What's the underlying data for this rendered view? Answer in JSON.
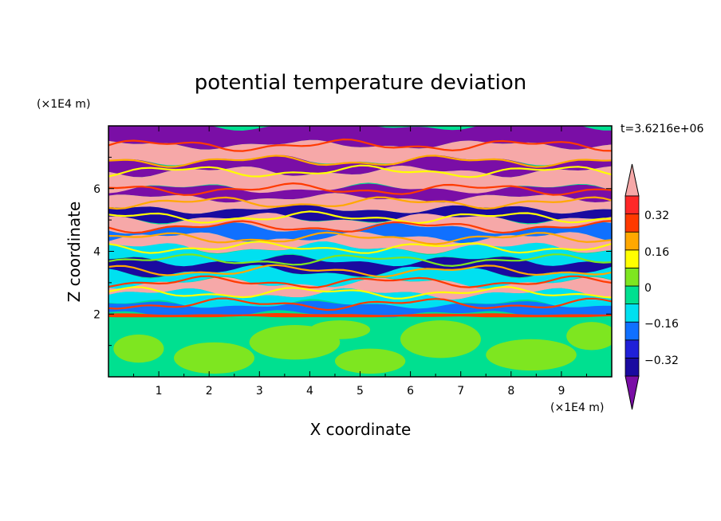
{
  "chart_data": {
    "type": "heatmap",
    "title": "potential temperature deviation",
    "xlabel": "X coordinate",
    "ylabel": "Z coordinate",
    "x_unit": "(×1E4 m)",
    "y_unit": "(×1E4 m)",
    "time_label": "t=3.6216e+06",
    "xlim": [
      0,
      10
    ],
    "ylim": [
      0,
      8
    ],
    "x_ticks": [
      "1",
      "2",
      "3",
      "4",
      "5",
      "6",
      "7",
      "8",
      "9"
    ],
    "y_ticks": [
      "2",
      "4",
      "6"
    ],
    "colorbar": {
      "levels": [
        -0.4,
        -0.32,
        -0.24,
        -0.16,
        -0.08,
        0,
        0.08,
        0.16,
        0.24,
        0.32,
        0.4
      ],
      "labels": [
        "0.32",
        "0.16",
        "0",
        "−0.16",
        "−0.32"
      ],
      "colors": [
        "#7a0ea6",
        "#1a0aa0",
        "#2020d8",
        "#1070ff",
        "#00e0f0",
        "#00e090",
        "#7ee620",
        "#ffff00",
        "#ffa800",
        "#ff3a00",
        "#ff2828",
        "#f6a8a8"
      ]
    },
    "bands": [
      {
        "z0": 7.4,
        "z1": 8.0,
        "color": "#7a0ea6",
        "wave": 0.1
      },
      {
        "z0": 6.9,
        "z1": 7.4,
        "color": "#f6a8a8",
        "wave": 0.1
      },
      {
        "z0": 6.55,
        "z1": 6.9,
        "color": "#7a0ea6",
        "wave": 0.12
      },
      {
        "z0": 6.0,
        "z1": 6.55,
        "color": "#f6a8a8",
        "wave": 0.12
      },
      {
        "z0": 5.7,
        "z1": 6.0,
        "color": "#7a0ea6",
        "wave": 0.1
      },
      {
        "z0": 5.35,
        "z1": 5.7,
        "color": "#f6a8a8",
        "wave": 0.1
      },
      {
        "z0": 5.05,
        "z1": 5.35,
        "color": "#1a0aa0",
        "wave": 0.1
      },
      {
        "z0": 4.75,
        "z1": 5.05,
        "color": "#f6a8a8",
        "wave": 0.12
      },
      {
        "z0": 4.45,
        "z1": 4.75,
        "color": "#1070ff",
        "wave": 0.12
      },
      {
        "z0": 4.1,
        "z1": 4.45,
        "color": "#f6a8a8",
        "wave": 0.12
      },
      {
        "z0": 3.7,
        "z1": 4.1,
        "color": "#00e0f0",
        "wave": 0.14
      },
      {
        "z0": 3.35,
        "z1": 3.7,
        "color": "#1a0aa0",
        "wave": 0.12
      },
      {
        "z0": 3.0,
        "z1": 3.35,
        "color": "#00e0f0",
        "wave": 0.14
      },
      {
        "z0": 2.65,
        "z1": 3.0,
        "color": "#f6a8a8",
        "wave": 0.12
      },
      {
        "z0": 2.3,
        "z1": 2.65,
        "color": "#00e0f0",
        "wave": 0.12
      },
      {
        "z0": 2.0,
        "z1": 2.3,
        "color": "#1070ff",
        "wave": 0.08
      },
      {
        "z0": 1.9,
        "z1": 2.0,
        "color": "#ff3a00",
        "wave": 0.02
      },
      {
        "z0": 0.0,
        "z1": 1.9,
        "color": "#00e090",
        "wave": 0.0
      }
    ],
    "streaks": [
      {
        "z": 7.38,
        "color": "#ff3a00"
      },
      {
        "z": 6.88,
        "color": "#ffa800"
      },
      {
        "z": 6.55,
        "color": "#ffff00"
      },
      {
        "z": 5.98,
        "color": "#ff3a00"
      },
      {
        "z": 5.55,
        "color": "#ffa800"
      },
      {
        "z": 5.08,
        "color": "#ffff00"
      },
      {
        "z": 4.78,
        "color": "#ff3a00"
      },
      {
        "z": 4.42,
        "color": "#ffa800"
      },
      {
        "z": 4.12,
        "color": "#ffff00"
      },
      {
        "z": 3.72,
        "color": "#7ee620"
      },
      {
        "z": 3.38,
        "color": "#ffa800"
      },
      {
        "z": 3.02,
        "color": "#ff3a00"
      },
      {
        "z": 2.68,
        "color": "#ffff00"
      },
      {
        "z": 2.32,
        "color": "#ff3a00"
      }
    ],
    "lower_patches_color": "#7ee620"
  }
}
